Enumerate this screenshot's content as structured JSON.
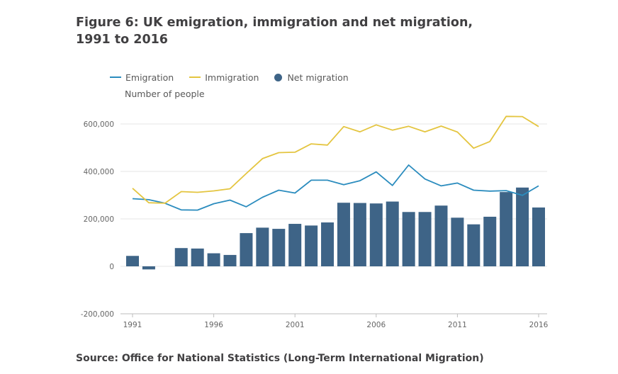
{
  "title_lines": [
    "Figure 6: UK emigration, immigration and net migration,",
    "1991 to 2016"
  ],
  "source": "Source: Office for National Statistics (Long-Term International Migration)",
  "colors": {
    "emigration": "#2b8cbe",
    "immigration": "#e4c540",
    "net": "#3e6487",
    "grid": "#e6e6e6",
    "axis": "#bdbdbd"
  },
  "chart_data": {
    "type": "bar",
    "title": "Figure 6: UK emigration, immigration and net migration, 1991 to 2016",
    "ylabel": "Number of people",
    "xlabel": "",
    "ylim": [
      -200000,
      600000
    ],
    "yticks": [
      -200000,
      0,
      200000,
      400000,
      600000
    ],
    "ytick_labels": [
      "-200,000",
      "0",
      "200,000",
      "400,000",
      "600,000"
    ],
    "xticks": [
      1991,
      1996,
      2001,
      2006,
      2011,
      2016
    ],
    "xtick_labels": [
      "1991",
      "1996",
      "2001",
      "2006",
      "2011",
      "2016"
    ],
    "grid": true,
    "legend_position": "top-left",
    "x": [
      1991,
      1992,
      1993,
      1994,
      1995,
      1996,
      1997,
      1998,
      1999,
      2000,
      2001,
      2002,
      2003,
      2004,
      2005,
      2006,
      2007,
      2008,
      2009,
      2010,
      2011,
      2012,
      2013,
      2014,
      2015,
      2016
    ],
    "series": [
      {
        "name": "Emigration",
        "type": "line",
        "values": [
          285000,
          281000,
          266000,
          238000,
          237000,
          264000,
          279000,
          251000,
          291000,
          321000,
          309000,
          363000,
          363000,
          344000,
          361000,
          398000,
          341000,
          427000,
          368000,
          339000,
          351000,
          321000,
          317000,
          319000,
          299000,
          339000
        ]
      },
      {
        "name": "Immigration",
        "type": "line",
        "values": [
          329000,
          268000,
          266000,
          315000,
          312000,
          318000,
          327000,
          391000,
          454000,
          479000,
          481000,
          516000,
          511000,
          589000,
          567000,
          596000,
          574000,
          590000,
          567000,
          591000,
          566000,
          498000,
          526000,
          632000,
          631000,
          589000
        ]
      },
      {
        "name": "Net migration",
        "type": "bar",
        "values": [
          44000,
          -13000,
          0,
          77000,
          75000,
          55000,
          48000,
          140000,
          163000,
          158000,
          179000,
          172000,
          185000,
          268000,
          267000,
          265000,
          273000,
          229000,
          229000,
          256000,
          205000,
          177000,
          209000,
          313000,
          332000,
          248000
        ]
      }
    ]
  }
}
